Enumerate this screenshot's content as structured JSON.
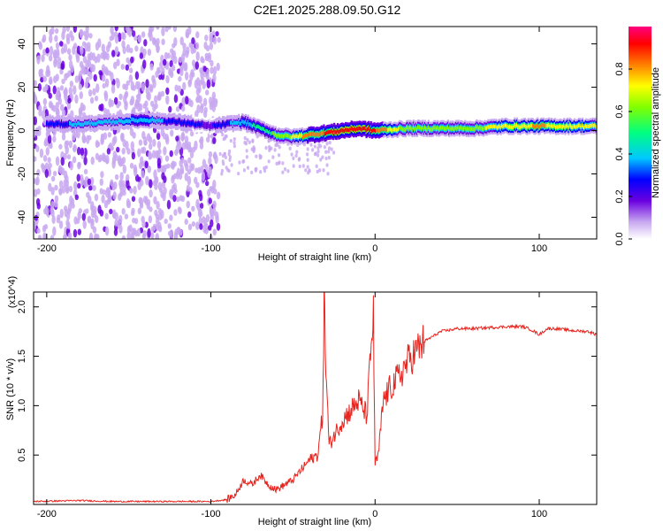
{
  "title": "C2E1.2025.288.09.50.G12",
  "chart_data": [
    {
      "type": "heatmap",
      "xlabel": "Height of straight line (km)",
      "ylabel": "Frequency (Hz)",
      "xlim": [
        -208,
        135
      ],
      "ylim": [
        -50,
        48
      ],
      "x_ticks": [
        -200,
        -100,
        0,
        100
      ],
      "y_ticks": [
        -40,
        -20,
        0,
        20,
        40
      ],
      "colorbar": {
        "label": "Normalized spectral amplitude",
        "range": [
          0,
          1
        ],
        "ticks": [
          0.0,
          0.2,
          0.4,
          0.6,
          0.8
        ],
        "colors": [
          "#ffffff",
          "#c8a8f0",
          "#6a00e0",
          "#0000ff",
          "#00c8ff",
          "#00ff80",
          "#80ff00",
          "#ffff00",
          "#ff8000",
          "#ff0000",
          "#ff0080"
        ]
      },
      "noise_region_x": [
        -208,
        -95
      ],
      "trace": {
        "x": [
          -200,
          -180,
          -160,
          -140,
          -120,
          -100,
          -90,
          -80,
          -70,
          -60,
          -50,
          -40,
          -30,
          -20,
          -10,
          0,
          20,
          40,
          60,
          80,
          100,
          120,
          135
        ],
        "frequency": [
          3,
          3,
          4,
          5,
          4,
          2,
          3,
          4,
          1,
          -2,
          -3,
          -2,
          -1,
          0,
          1,
          0,
          1,
          1,
          1,
          2,
          2,
          2,
          2
        ],
        "amplitude": [
          0.3,
          0.4,
          0.4,
          0.45,
          0.3,
          0.25,
          0.35,
          0.45,
          0.5,
          0.6,
          0.7,
          0.85,
          0.9,
          0.95,
          0.95,
          0.9,
          0.6,
          0.6,
          0.65,
          0.75,
          0.8,
          0.75,
          0.7
        ]
      }
    },
    {
      "type": "line",
      "xlabel": "Height of straight line (km)",
      "ylabel": "SNR (10 * v/v)",
      "y_multiplier": "(x10^4)",
      "xlim": [
        -208,
        135
      ],
      "ylim": [
        0,
        2.15
      ],
      "x_ticks": [
        -200,
        -100,
        0,
        100
      ],
      "y_ticks": [
        0.5,
        1.0,
        1.5,
        2.0
      ],
      "series": [
        {
          "color": "#e8241e",
          "x": [
            -208,
            -180,
            -160,
            -140,
            -120,
            -100,
            -90,
            -85,
            -80,
            -75,
            -70,
            -65,
            -60,
            -55,
            -50,
            -45,
            -40,
            -35,
            -32,
            -31,
            -30,
            -28,
            -25,
            -20,
            -15,
            -10,
            -5,
            -2,
            -1,
            0,
            2,
            5,
            10,
            15,
            20,
            25,
            30,
            35,
            40,
            50,
            60,
            70,
            80,
            90,
            95,
            100,
            105,
            110,
            120,
            130,
            135
          ],
          "y": [
            0.03,
            0.04,
            0.03,
            0.03,
            0.03,
            0.03,
            0.05,
            0.1,
            0.25,
            0.2,
            0.3,
            0.2,
            0.15,
            0.2,
            0.25,
            0.35,
            0.45,
            0.5,
            0.9,
            2.1,
            1.4,
            0.6,
            0.7,
            0.85,
            0.95,
            1.05,
            0.9,
            1.7,
            1.9,
            0.4,
            0.5,
            1.05,
            1.2,
            1.3,
            1.45,
            1.55,
            1.65,
            1.7,
            1.75,
            1.78,
            1.78,
            1.79,
            1.8,
            1.8,
            1.77,
            1.72,
            1.78,
            1.78,
            1.76,
            1.75,
            1.72
          ]
        }
      ]
    }
  ]
}
